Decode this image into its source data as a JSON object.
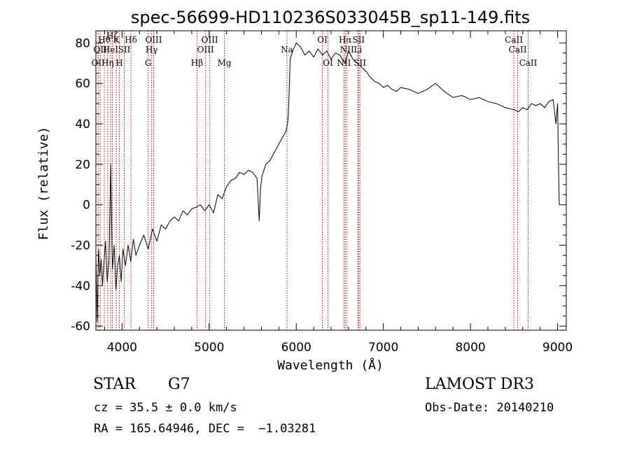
{
  "chart_data": {
    "type": "line",
    "title": "spec-56699-HD110236S033045B_sp11-149.fits",
    "xlabel": "Wavelength (Å)",
    "ylabel": "Flux (relative)",
    "xlim": [
      3700,
      9100
    ],
    "ylim": [
      -62,
      86
    ],
    "x_ticks": [
      4000,
      5000,
      6000,
      7000,
      8000,
      9000
    ],
    "x_tick_labels": [
      "4000",
      "5000",
      "6000",
      "7000",
      "8000",
      "9000"
    ],
    "y_ticks": [
      -60,
      -40,
      -20,
      0,
      20,
      40,
      60,
      80
    ],
    "y_tick_labels": [
      "-60",
      "-40",
      "-20",
      "0",
      "20",
      "40",
      "60",
      "80"
    ],
    "grid": false,
    "line_color": "#000000",
    "marker_color": "#cc0000",
    "series": [
      {
        "x": [
          3700,
          3715,
          3730,
          3745,
          3760,
          3775,
          3790,
          3810,
          3830,
          3850,
          3870,
          3890,
          3910,
          3930,
          3950,
          3970,
          3990,
          4010,
          4040,
          4070,
          4100,
          4130,
          4160,
          4200,
          4250,
          4300,
          4350,
          4400,
          4450,
          4500,
          4550,
          4600,
          4650,
          4700,
          4750,
          4800,
          4860,
          4900,
          4950,
          5000,
          5050,
          5100,
          5150,
          5200,
          5250,
          5300,
          5350,
          5400,
          5450,
          5500,
          5550,
          5575,
          5590,
          5605,
          5650,
          5700,
          5750,
          5800,
          5850,
          5880,
          5900,
          5910,
          5920,
          5930,
          5960,
          6000,
          6050,
          6100,
          6150,
          6200,
          6250,
          6300,
          6350,
          6400,
          6450,
          6500,
          6560,
          6600,
          6650,
          6700,
          6750,
          6800,
          6850,
          6900,
          6950,
          7000,
          7050,
          7100,
          7150,
          7200,
          7300,
          7400,
          7500,
          7600,
          7700,
          7800,
          7900,
          8000,
          8100,
          8200,
          8300,
          8400,
          8500,
          8550,
          8600,
          8650,
          8700,
          8750,
          8800,
          8850,
          8900,
          8950,
          8980,
          9000,
          9010,
          9020
        ],
        "y": [
          -25,
          -58,
          -22,
          -35,
          -27,
          -40,
          -30,
          -18,
          -38,
          -28,
          20,
          -32,
          -20,
          -42,
          -30,
          -25,
          -38,
          -22,
          -30,
          -20,
          -28,
          -17,
          -25,
          -20,
          -15,
          -22,
          -12,
          -18,
          -10,
          -12,
          -8,
          -6,
          -8,
          -3,
          -5,
          -2,
          -1,
          0,
          -3,
          0,
          -4,
          5,
          3,
          9,
          12,
          13,
          16,
          15,
          17,
          16,
          13,
          -8,
          8,
          14,
          20,
          22,
          26,
          30,
          34,
          36,
          40,
          45,
          58,
          72,
          76,
          80,
          78,
          74,
          76,
          73,
          77,
          74,
          76,
          72,
          75,
          74,
          70,
          76,
          72,
          70,
          68,
          66,
          63,
          61,
          60,
          58,
          59,
          57,
          56,
          58,
          57,
          55,
          57,
          60,
          56,
          53,
          54,
          52,
          53,
          51,
          50,
          48,
          47,
          46,
          48,
          47,
          50,
          49,
          50,
          48,
          51,
          52,
          40,
          50,
          20,
          0
        ]
      }
    ],
    "line_markers": [
      {
        "wavelength": 3726,
        "label": "OII",
        "row": 3
      },
      {
        "wavelength": 3750,
        "label": "OII",
        "row": 2
      },
      {
        "wavelength": 3797,
        "label": "Hθ",
        "row": 1
      },
      {
        "wavelength": 3835,
        "label": "Hη",
        "row": 3
      },
      {
        "wavelength": 3869,
        "label": "HeI",
        "row": 2
      },
      {
        "wavelength": 3889,
        "label": "Hζ",
        "row": 0
      },
      {
        "wavelength": 3934,
        "label": "K",
        "row": 1
      },
      {
        "wavelength": 3969,
        "label": "H",
        "row": 3
      },
      {
        "wavelength": 4026,
        "label": "SII",
        "row": 2
      },
      {
        "wavelength": 4102,
        "label": "Hδ",
        "row": 1
      },
      {
        "wavelength": 4300,
        "label": "G",
        "row": 3
      },
      {
        "wavelength": 4340,
        "label": "Hγ",
        "row": 2
      },
      {
        "wavelength": 4363,
        "label": "OIII",
        "row": 1
      },
      {
        "wavelength": 4861,
        "label": "Hβ",
        "row": 3
      },
      {
        "wavelength": 4959,
        "label": "OIII",
        "row": 2
      },
      {
        "wavelength": 5007,
        "label": "OIII",
        "row": 1
      },
      {
        "wavelength": 5175,
        "label": "Mg",
        "row": 3
      },
      {
        "wavelength": 5893,
        "label": "Na",
        "row": 2
      },
      {
        "wavelength": 6300,
        "label": "OI",
        "row": 1
      },
      {
        "wavelength": 6364,
        "label": "OI",
        "row": 3
      },
      {
        "wavelength": 6548,
        "label": "NII",
        "row": 3
      },
      {
        "wavelength": 6563,
        "label": "Hα",
        "row": 1
      },
      {
        "wavelength": 6583,
        "label": "NII",
        "row": 2
      },
      {
        "wavelength": 6708,
        "label": "Li",
        "row": 2
      },
      {
        "wavelength": 6716,
        "label": "SII",
        "row": 1
      },
      {
        "wavelength": 6731,
        "label": "SII",
        "row": 3
      },
      {
        "wavelength": 8498,
        "label": "CaII",
        "row": 1
      },
      {
        "wavelength": 8542,
        "label": "CaII",
        "row": 2
      },
      {
        "wavelength": 8662,
        "label": "CaII",
        "row": 3
      }
    ]
  },
  "info": {
    "class_label": "STAR",
    "subclass": "G7",
    "redshift_text": "cz = 35.5 ± 0.0 km/s",
    "coords_text": "RA = 165.64946, DEC =  −1.03281",
    "survey": "LAMOST DR3",
    "obs_date_text": "Obs-Date: 20140210"
  }
}
